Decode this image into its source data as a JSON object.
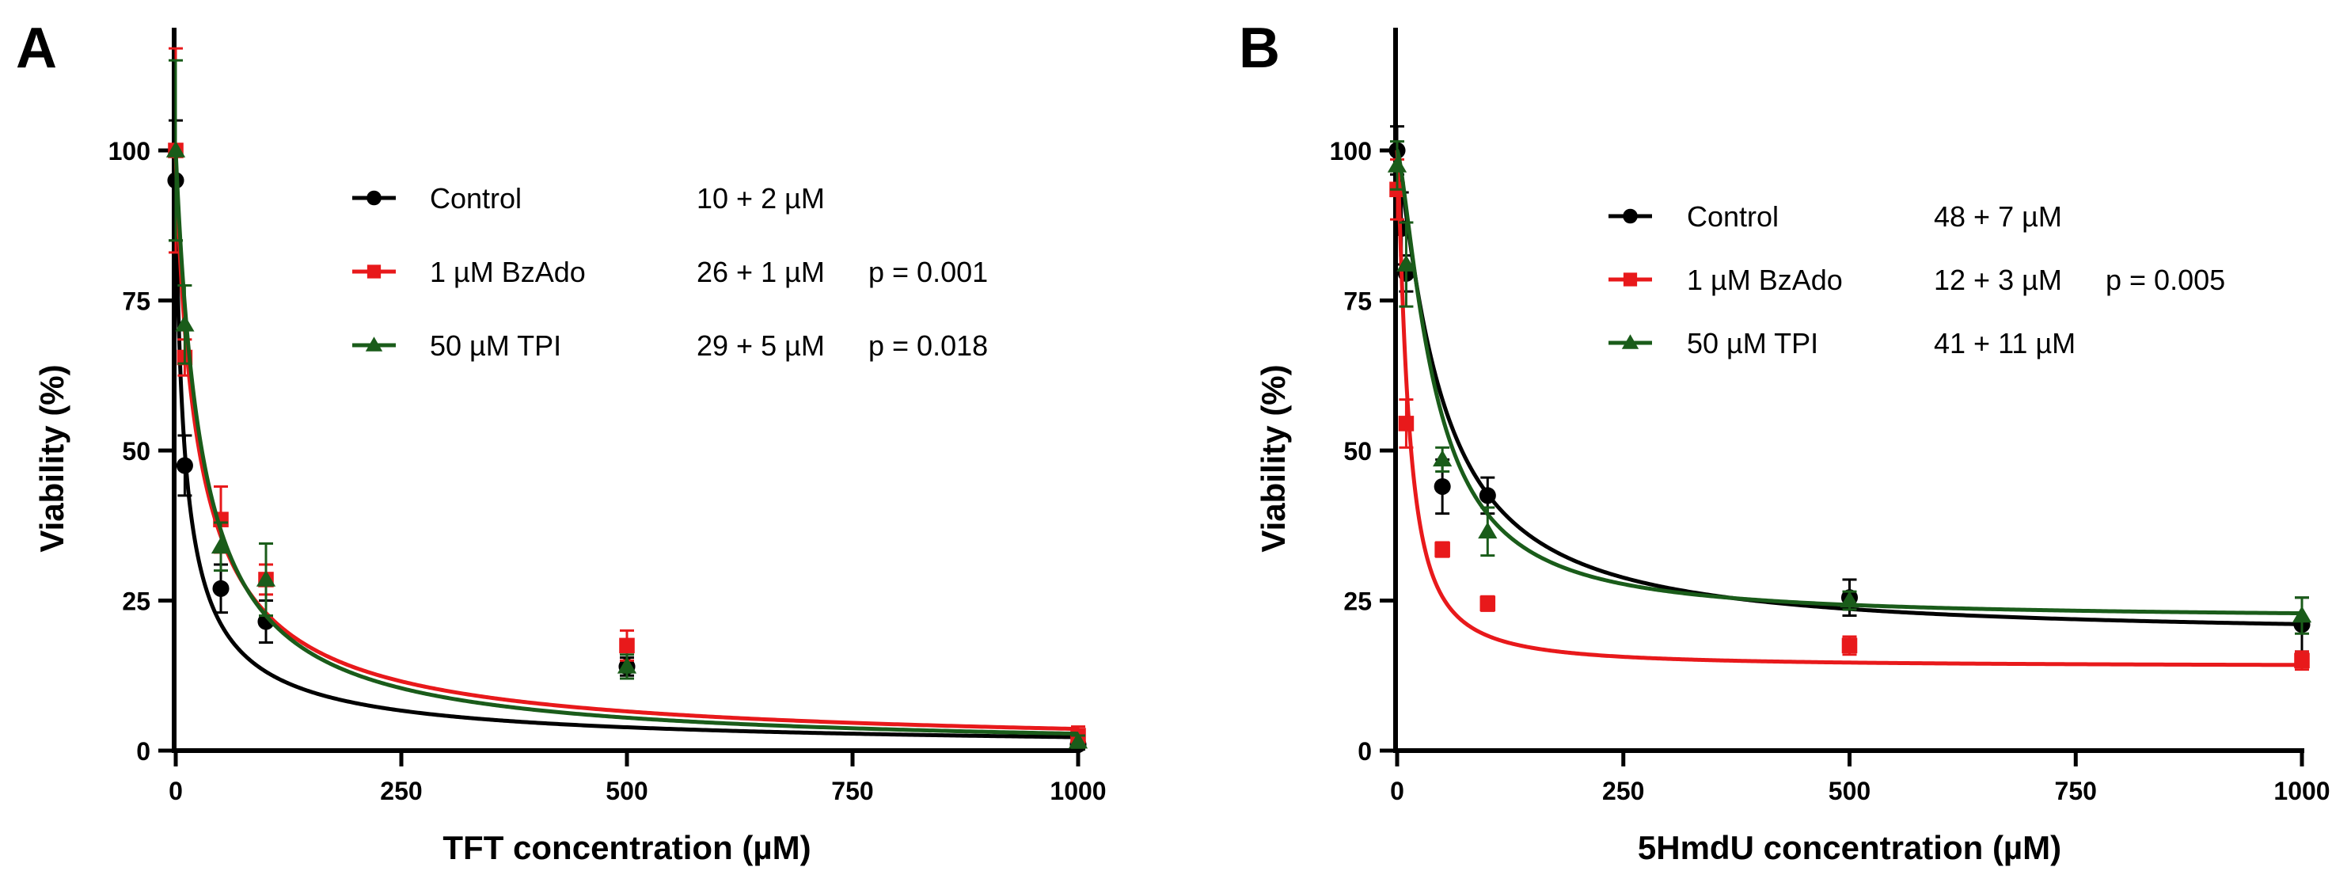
{
  "chart_data": [
    {
      "type": "scatter",
      "panel_label": "A",
      "xlabel": "TFT concentration (µM)",
      "ylabel": "Viability (%)",
      "xlim": [
        0,
        1000
      ],
      "ylim": [
        0,
        120
      ],
      "xticks": [
        0,
        250,
        500,
        750,
        1000
      ],
      "yticks": [
        0,
        25,
        50,
        75,
        100
      ],
      "series": [
        {
          "name": "Control",
          "color": "#000000",
          "marker": "circle",
          "ic50": "10 + 2 µM",
          "pvalue": "",
          "fit": {
            "top": 100,
            "bottom": 0,
            "ic50": 10,
            "hill": 0.82
          },
          "points": [
            {
              "x": 0,
              "y": 95,
              "err": 10
            },
            {
              "x": 10,
              "y": 47.5,
              "err": 5
            },
            {
              "x": 50,
              "y": 27,
              "err": 4
            },
            {
              "x": 100,
              "y": 21.5,
              "err": 3.5
            },
            {
              "x": 500,
              "y": 14,
              "err": 1.5
            },
            {
              "x": 1000,
              "y": 1,
              "err": 0.8
            }
          ]
        },
        {
          "name": "1 µM BzAdo",
          "color": "#e8191b",
          "marker": "square",
          "ic50": "26 + 1 µM",
          "pvalue": "p = 0.001",
          "fit": {
            "top": 100,
            "bottom": 0,
            "ic50": 26,
            "hill": 0.9
          },
          "points": [
            {
              "x": 0,
              "y": 100,
              "err": 17
            },
            {
              "x": 10,
              "y": 65.5,
              "err": 3
            },
            {
              "x": 50,
              "y": 38.5,
              "err": 5.5
            },
            {
              "x": 100,
              "y": 28.5,
              "err": 2.5
            },
            {
              "x": 500,
              "y": 17.5,
              "err": 2.5
            },
            {
              "x": 1000,
              "y": 2.5,
              "err": 1.5
            }
          ]
        },
        {
          "name": "50 µM TPI",
          "color": "#1a5c1a",
          "marker": "triangle",
          "ic50": "29 + 5 µM",
          "pvalue": "p = 0.018",
          "fit": {
            "top": 100,
            "bottom": 0,
            "ic50": 29,
            "hill": 1.0
          },
          "points": [
            {
              "x": 0,
              "y": 100,
              "err": 15
            },
            {
              "x": 10,
              "y": 71,
              "err": 6.5
            },
            {
              "x": 50,
              "y": 34,
              "err": 4
            },
            {
              "x": 100,
              "y": 28.5,
              "err": 6
            },
            {
              "x": 500,
              "y": 14,
              "err": 2
            },
            {
              "x": 1000,
              "y": 1.5,
              "err": 1
            }
          ]
        }
      ]
    },
    {
      "type": "scatter",
      "panel_label": "B",
      "xlabel": "5HmdU concentration (µM)",
      "ylabel": "Viability (%)",
      "xlim": [
        0,
        1000
      ],
      "ylim": [
        0,
        120
      ],
      "xticks": [
        0,
        250,
        500,
        750,
        1000
      ],
      "yticks": [
        0,
        25,
        50,
        75,
        100
      ],
      "series": [
        {
          "name": "Control",
          "color": "#000000",
          "marker": "circle",
          "ic50": "48 + 7 µM",
          "pvalue": "",
          "fit": {
            "top": 100,
            "bottom": 19,
            "ic50": 48,
            "hill": 1.2
          },
          "points": [
            {
              "x": 0,
              "y": 100,
              "err": 4
            },
            {
              "x": 5,
              "y": 87,
              "err": 6
            },
            {
              "x": 10,
              "y": 79.5,
              "err": 3
            },
            {
              "x": 50,
              "y": 44,
              "err": 4.5
            },
            {
              "x": 100,
              "y": 42.5,
              "err": 3
            },
            {
              "x": 500,
              "y": 25.5,
              "err": 3
            },
            {
              "x": 1000,
              "y": 21,
              "err": 4.5
            }
          ]
        },
        {
          "name": "1 µM BzAdo",
          "color": "#e8191b",
          "marker": "square",
          "ic50": "12 + 3 µM",
          "pvalue": "p = 0.005",
          "fit": {
            "top": 100,
            "bottom": 14,
            "ic50": 12,
            "hill": 1.3
          },
          "points": [
            {
              "x": 0,
              "y": 93.5,
              "err": 5
            },
            {
              "x": 10,
              "y": 54.5,
              "err": 4
            },
            {
              "x": 50,
              "y": 33.5,
              "err": 1.2
            },
            {
              "x": 100,
              "y": 24.5,
              "err": 1.2
            },
            {
              "x": 500,
              "y": 17.5,
              "err": 1.5
            },
            {
              "x": 1000,
              "y": 15,
              "err": 1.5
            }
          ]
        },
        {
          "name": "50 µM TPI",
          "color": "#1a5c1a",
          "marker": "triangle",
          "ic50": "41 + 11 µM",
          "pvalue": "",
          "fit": {
            "top": 100,
            "bottom": 22,
            "ic50": 41,
            "hill": 1.4
          },
          "points": [
            {
              "x": 0,
              "y": 97.5,
              "err": 4
            },
            {
              "x": 10,
              "y": 81,
              "err": 7
            },
            {
              "x": 50,
              "y": 48.5,
              "err": 2
            },
            {
              "x": 100,
              "y": 36.5,
              "err": 4
            },
            {
              "x": 500,
              "y": 25,
              "err": 1.5
            },
            {
              "x": 1000,
              "y": 22.5,
              "err": 3
            }
          ]
        }
      ]
    }
  ]
}
